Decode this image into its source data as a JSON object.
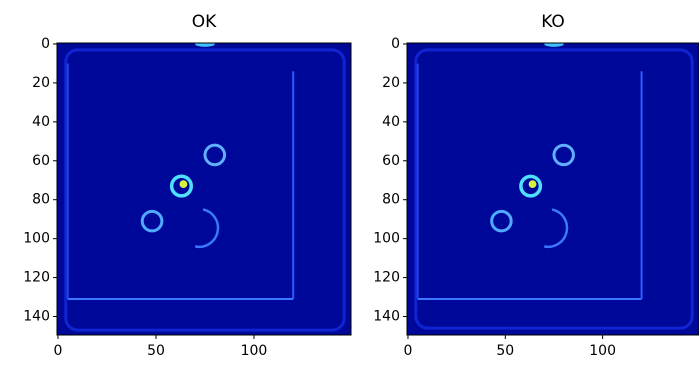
{
  "chart_data": [
    {
      "type": "image",
      "title": "OK",
      "xlim": [
        -0.5,
        149.5
      ],
      "ylim": [
        149.5,
        -0.5
      ],
      "xticks": [
        0,
        50,
        100
      ],
      "yticks": [
        0,
        20,
        40,
        60,
        80,
        100,
        120,
        140
      ]
    },
    {
      "type": "image",
      "title": "KO",
      "xlim": [
        -0.5,
        149.5
      ],
      "ylim": [
        149.5,
        -0.5
      ],
      "xticks": [
        0,
        50,
        100
      ],
      "yticks": [
        0,
        20,
        40,
        60,
        80,
        100,
        120,
        140
      ]
    }
  ]
}
